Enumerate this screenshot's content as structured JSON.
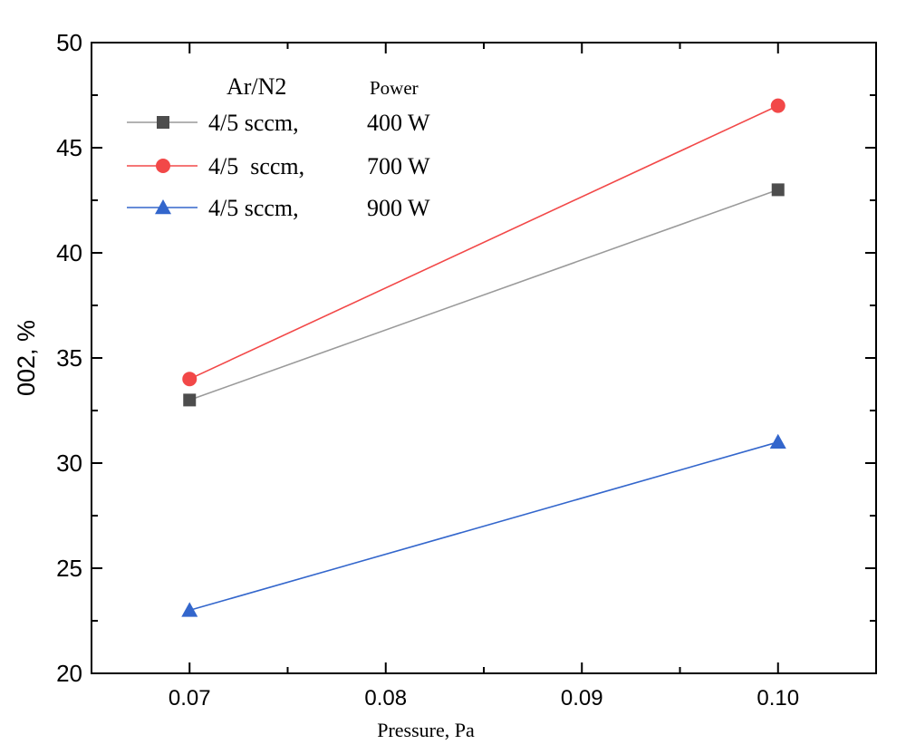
{
  "chart_data": {
    "type": "line",
    "xlabel": "Pressure, Pa",
    "ylabel": "002, %",
    "xlim": [
      0.065,
      0.105
    ],
    "ylim": [
      20,
      50
    ],
    "x_ticks": [
      "0.07",
      "0.08",
      "0.09",
      "0.10"
    ],
    "y_ticks": [
      "20",
      "25",
      "30",
      "35",
      "40",
      "45",
      "50"
    ],
    "grid": false,
    "legend_placement": "top-left",
    "legend_headers": {
      "gas": "Ar/N2",
      "power": "Power"
    },
    "x": [
      0.07,
      0.1
    ],
    "series": [
      {
        "name_flow": "4/5 sccm,",
        "name_power": "400 W",
        "marker": "square",
        "color": "#4d4d4d",
        "line_color": "#9a9a9a",
        "values": [
          33,
          43
        ]
      },
      {
        "name_flow": "4/5  sccm,",
        "name_power": "700 W",
        "marker": "circle",
        "color": "#f24848",
        "line_color": "#f24848",
        "values": [
          34,
          47
        ]
      },
      {
        "name_flow": "4/5 sccm,",
        "name_power": "900 W",
        "marker": "triangle",
        "color": "#3366cc",
        "line_color": "#3366cc",
        "values": [
          23,
          31
        ]
      }
    ]
  }
}
